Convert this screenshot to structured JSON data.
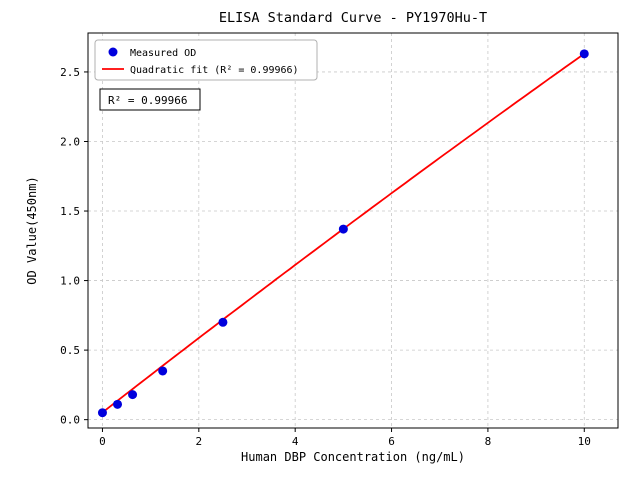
{
  "page": {
    "title": "ELISA Standard Curve - PY1970Hu-T"
  },
  "chart_data": {
    "type": "scatter",
    "title": "ELISA Standard Curve - PY1970Hu-T",
    "xlabel": "Human DBP Concentration (ng/mL)",
    "ylabel": "OD Value(450nm)",
    "xlim": [
      -0.3,
      10.7
    ],
    "ylim": [
      -0.06,
      2.78
    ],
    "xticks": [
      0,
      2,
      4,
      6,
      8,
      10
    ],
    "yticks": [
      0.0,
      0.5,
      1.0,
      1.5,
      2.0,
      2.5
    ],
    "grid": true,
    "grid_style": "dashed",
    "legend_position": "upper-left",
    "series": [
      {
        "name": "Measured OD",
        "type": "scatter",
        "marker": "circle",
        "color": "#0000dd",
        "x": [
          0,
          0.3125,
          0.625,
          1.25,
          2.5,
          5,
          10
        ],
        "y": [
          0.05,
          0.11,
          0.18,
          0.35,
          0.7,
          1.37,
          2.63
        ]
      },
      {
        "name": "Quadratic fit (R² = 0.99966)",
        "type": "quadratic-fit",
        "color": "#ff0000",
        "coeffs": {
          "a": -0.0012,
          "b": 0.2699,
          "c": 0.052
        },
        "x_range": [
          0,
          10
        ]
      }
    ],
    "annotation": "R² = 0.99966",
    "r_squared": 0.99966
  },
  "colors": {
    "scatter": "#0000dd",
    "fit_line": "#ff0000",
    "grid": "#c8c8c8",
    "frame": "#000000",
    "background": "#ffffff"
  }
}
